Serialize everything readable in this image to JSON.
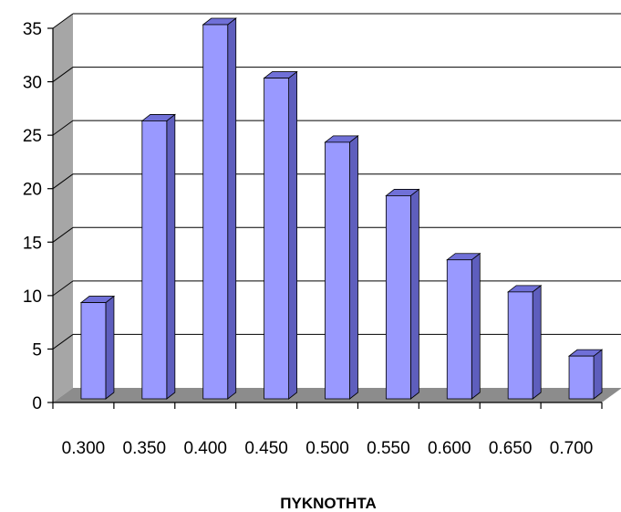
{
  "chart_data": {
    "type": "bar",
    "title": "",
    "xlabel": "ΠΥΚΝΟΤΗΤΑ",
    "ylabel": "",
    "categories": [
      "0.300",
      "0.350",
      "0.400",
      "0.450",
      "0.500",
      "0.550",
      "0.600",
      "0.650",
      "0.700"
    ],
    "values": [
      9,
      26,
      35,
      30,
      24,
      19,
      13,
      10,
      4
    ],
    "ylim": [
      0,
      35
    ],
    "yticks": [
      "0",
      "5",
      "10",
      "15",
      "20",
      "25",
      "30",
      "35"
    ],
    "grid": true,
    "legend": "none",
    "style": "3d-column"
  },
  "colors": {
    "bar_front": "#9999ff",
    "bar_side": "#5e5ebd",
    "bar_top": "#7070d8",
    "wall_side": "#a6a6a6",
    "floor": "#8c8c8c",
    "gridline": "#000000"
  }
}
